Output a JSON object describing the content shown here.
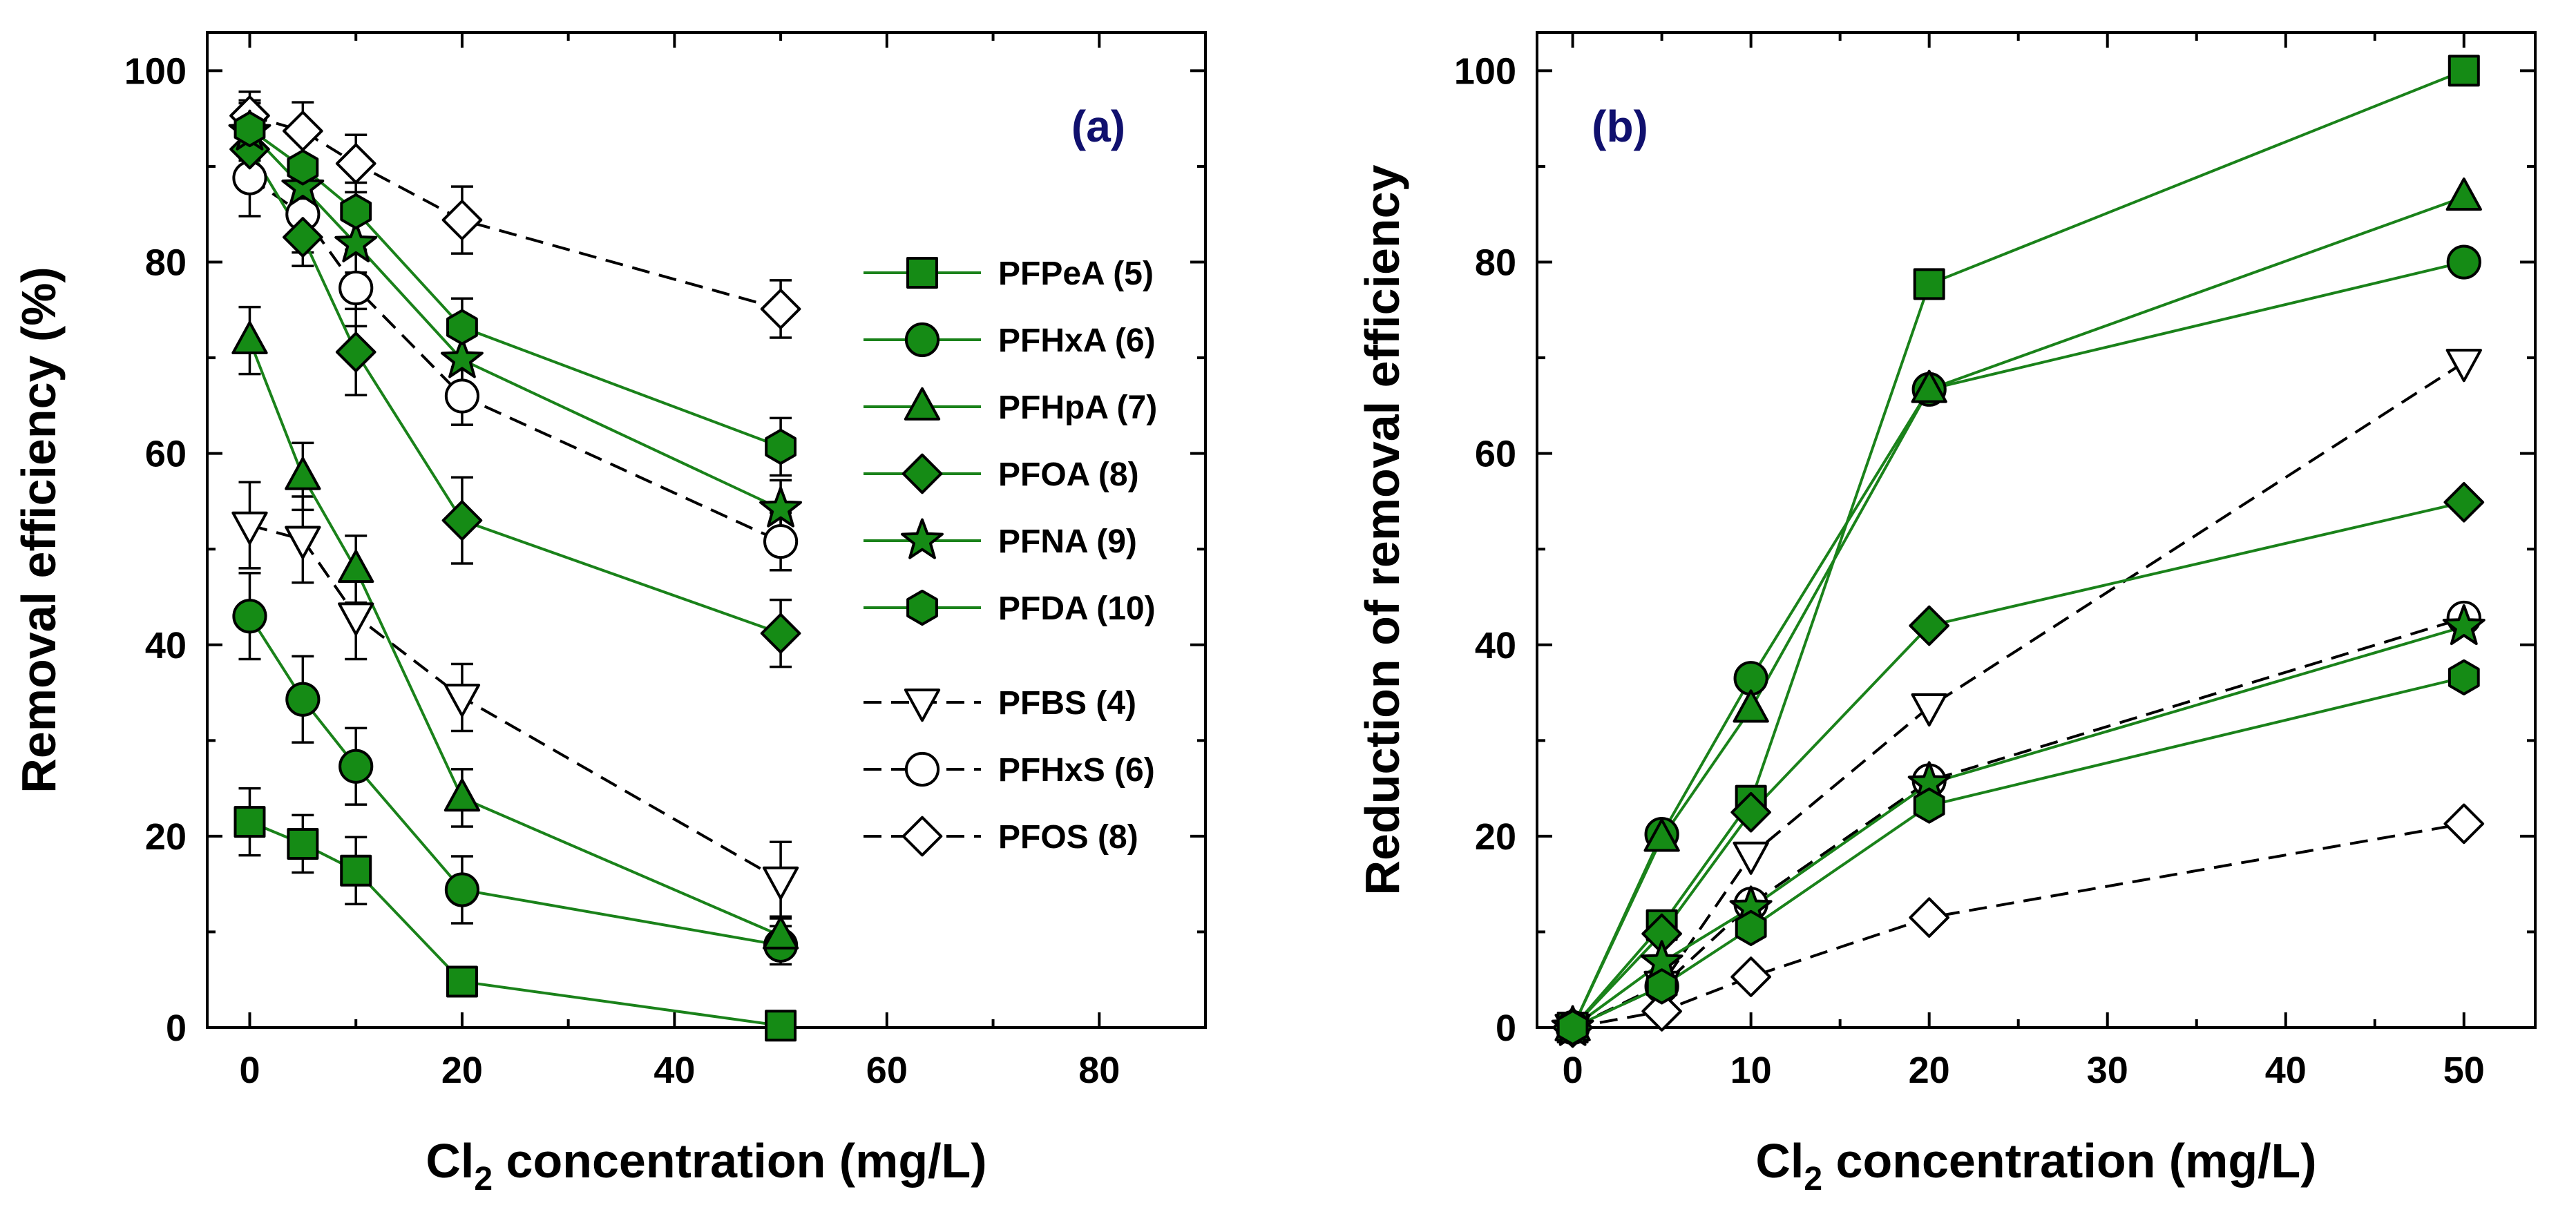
{
  "chart_data": [
    {
      "panel": "(a)",
      "type": "line",
      "ylabel": "Removal efficiency  (%)",
      "xlabel_main": "Cl",
      "xlabel_sub": "2",
      "xlabel_rest": " concentration  (mg/L)",
      "xlim": [
        -4,
        90
      ],
      "ylim": [
        0,
        104
      ],
      "xticks": [
        0,
        20,
        40,
        60,
        80
      ],
      "yticks": [
        0,
        20,
        40,
        60,
        80,
        100
      ],
      "grid": false,
      "legend_position": "right",
      "x": [
        0,
        5,
        10,
        20,
        50
      ],
      "series": [
        {
          "name": "PFPeA (5)",
          "marker": "square",
          "filled": true,
          "dashed": false,
          "values": [
            21.5,
            19.2,
            16.4,
            4.8,
            0.2
          ],
          "errors": [
            3.5,
            3.0,
            3.5,
            1.5,
            0.8
          ]
        },
        {
          "name": "PFHxA (6)",
          "marker": "circle",
          "filled": true,
          "dashed": false,
          "values": [
            43.0,
            34.3,
            27.3,
            14.4,
            8.6
          ],
          "errors": [
            4.5,
            4.5,
            4.0,
            3.5,
            2.0
          ]
        },
        {
          "name": "PFHpA (7)",
          "marker": "triangle-up",
          "filled": true,
          "dashed": false,
          "values": [
            71.8,
            57.6,
            47.9,
            24.0,
            9.6
          ],
          "errors": [
            3.5,
            3.5,
            3.5,
            3.0,
            2.0
          ]
        },
        {
          "name": "PFOA (8)",
          "marker": "diamond",
          "filled": true,
          "dashed": false,
          "values": [
            91.8,
            82.6,
            70.6,
            53.0,
            41.2
          ],
          "errors": [
            3.0,
            3.0,
            4.5,
            4.5,
            3.5
          ]
        },
        {
          "name": "PFNA (9)",
          "marker": "star",
          "filled": true,
          "dashed": false,
          "values": [
            93.6,
            87.8,
            81.9,
            69.8,
            54.2
          ],
          "errors": [
            3.0,
            3.0,
            3.0,
            3.0,
            3.0
          ]
        },
        {
          "name": "PFDA (10)",
          "marker": "hexagon",
          "filled": true,
          "dashed": false,
          "values": [
            93.9,
            89.9,
            85.3,
            73.2,
            60.7
          ],
          "errors": [
            3.0,
            3.0,
            3.0,
            3.0,
            3.0
          ]
        },
        {
          "name": "PFBS (4)",
          "marker": "triangle-down",
          "filled": false,
          "dashed": true,
          "values": [
            52.5,
            51.0,
            43.0,
            34.5,
            15.4
          ],
          "errors": [
            4.5,
            4.5,
            4.5,
            3.5,
            4.0
          ]
        },
        {
          "name": "PFHxS (6)",
          "marker": "circle",
          "filled": false,
          "dashed": true,
          "values": [
            88.8,
            85.0,
            77.3,
            66.0,
            50.8
          ],
          "errors": [
            4.0,
            4.0,
            4.0,
            3.0,
            3.0
          ]
        },
        {
          "name": "PFOS (8)",
          "marker": "diamond",
          "filled": false,
          "dashed": true,
          "values": [
            95.3,
            93.7,
            90.3,
            84.4,
            75.1
          ],
          "errors": [
            2.5,
            3.0,
            3.0,
            3.5,
            3.0
          ]
        }
      ]
    },
    {
      "panel": "(b)",
      "type": "line",
      "ylabel": "Reduction of removal efficiency",
      "xlabel_main": "Cl",
      "xlabel_sub": "2",
      "xlabel_rest": " concentration  (mg/L)",
      "xlim": [
        -2,
        54
      ],
      "ylim": [
        0,
        104
      ],
      "xticks": [
        0,
        10,
        20,
        30,
        40,
        50
      ],
      "yticks": [
        0,
        20,
        40,
        60,
        80,
        100
      ],
      "grid": false,
      "legend_position": "none",
      "x": [
        0,
        5,
        10,
        20,
        50
      ],
      "series": [
        {
          "name": "PFPeA (5)",
          "marker": "square",
          "filled": true,
          "dashed": false,
          "values": [
            0,
            10.7,
            23.7,
            77.7,
            100.0
          ]
        },
        {
          "name": "PFHxA (6)",
          "marker": "circle",
          "filled": true,
          "dashed": false,
          "values": [
            0,
            20.2,
            36.5,
            66.7,
            80.0
          ]
        },
        {
          "name": "PFHpA (7)",
          "marker": "triangle-up",
          "filled": true,
          "dashed": false,
          "values": [
            0,
            19.8,
            33.3,
            66.7,
            86.8
          ]
        },
        {
          "name": "PFOA (8)",
          "marker": "diamond",
          "filled": true,
          "dashed": false,
          "values": [
            0,
            9.8,
            22.5,
            42.0,
            54.9
          ]
        },
        {
          "name": "PFNA (9)",
          "marker": "star",
          "filled": true,
          "dashed": false,
          "values": [
            0,
            6.8,
            12.5,
            25.5,
            41.9
          ]
        },
        {
          "name": "PFDA (10)",
          "marker": "hexagon",
          "filled": true,
          "dashed": false,
          "values": [
            0,
            4.3,
            10.4,
            23.2,
            36.6
          ]
        },
        {
          "name": "PFBS (4)",
          "marker": "triangle-down",
          "filled": false,
          "dashed": true,
          "values": [
            0,
            4.5,
            18.0,
            33.5,
            69.5
          ]
        },
        {
          "name": "PFHxS (6)",
          "marker": "circle",
          "filled": false,
          "dashed": true,
          "values": [
            0,
            4.3,
            12.9,
            25.8,
            42.8
          ]
        },
        {
          "name": "PFOS (8)",
          "marker": "diamond",
          "filled": false,
          "dashed": true,
          "values": [
            0,
            1.7,
            5.3,
            11.5,
            21.3
          ]
        }
      ]
    }
  ],
  "colors": {
    "series_fill": "#158b15",
    "series_line": "#1a821a",
    "open_fill": "#ffffff",
    "marker_edge": "#000000",
    "dashed_line": "#000000",
    "panel_label": "#10106e",
    "axis": "#000000"
  }
}
